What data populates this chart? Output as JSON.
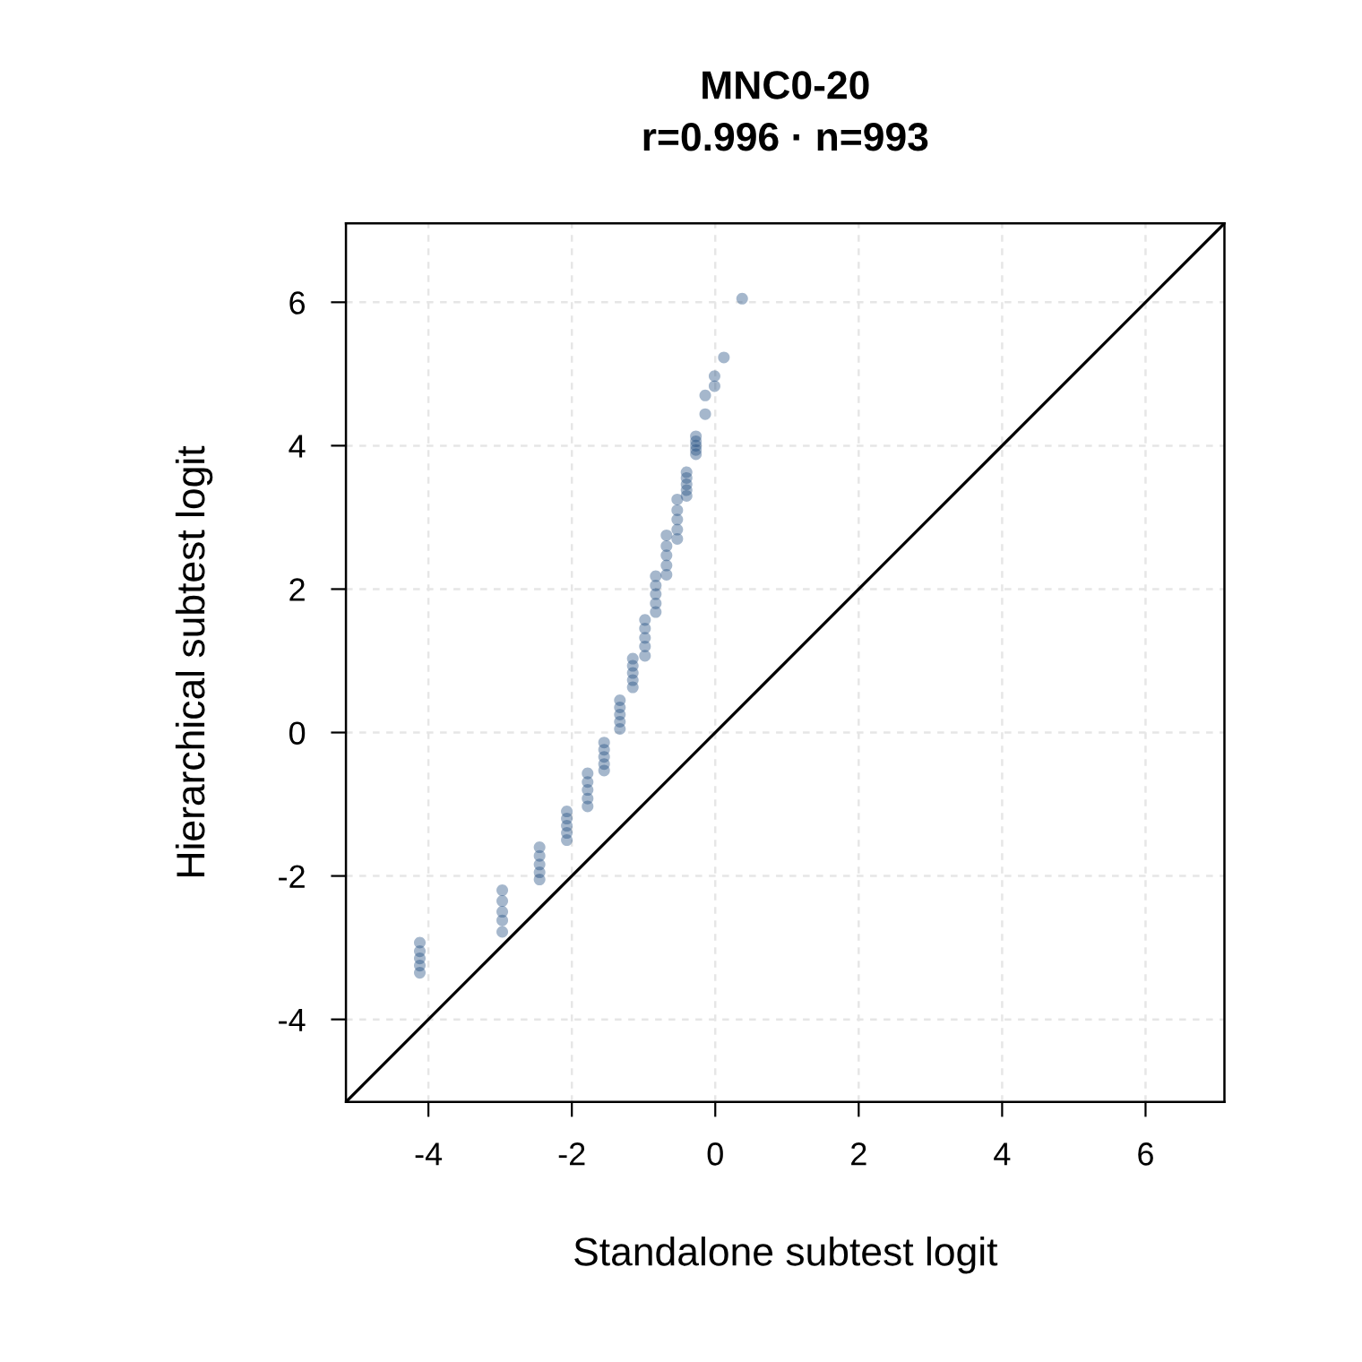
{
  "chart_data": {
    "type": "scatter",
    "title": "MNC0-20",
    "subtitle": "r=0.996 · n=993",
    "xlabel": "Standalone subtest logit",
    "ylabel": "Hierarchical subtest logit",
    "xlim": [
      -5.15,
      7.1
    ],
    "ylim": [
      -5.15,
      7.1
    ],
    "xticks": [
      -4,
      -2,
      0,
      2,
      4,
      6
    ],
    "yticks": [
      -4,
      -2,
      0,
      2,
      4,
      6
    ],
    "grid": true,
    "series": [
      {
        "marker": "circle",
        "color": "#1f4a80",
        "x": [
          -4.12,
          -4.12,
          -4.12,
          -4.12,
          -4.12,
          -2.97,
          -2.97,
          -2.97,
          -2.97,
          -2.97,
          -2.45,
          -2.45,
          -2.45,
          -2.45,
          -2.45,
          -2.07,
          -2.07,
          -2.07,
          -2.07,
          -2.07,
          -1.78,
          -1.78,
          -1.78,
          -1.78,
          -1.78,
          -1.55,
          -1.55,
          -1.55,
          -1.55,
          -1.55,
          -1.33,
          -1.33,
          -1.33,
          -1.33,
          -1.33,
          -1.15,
          -1.15,
          -1.15,
          -1.15,
          -1.15,
          -0.98,
          -0.98,
          -0.98,
          -0.98,
          -0.98,
          -0.83,
          -0.83,
          -0.83,
          -0.83,
          -0.83,
          -0.68,
          -0.68,
          -0.68,
          -0.68,
          -0.68,
          -0.53,
          -0.53,
          -0.53,
          -0.53,
          -0.53,
          -0.4,
          -0.4,
          -0.4,
          -0.4,
          -0.4,
          -0.27,
          -0.27,
          -0.27,
          -0.27,
          -0.27,
          -0.14,
          -0.14,
          -0.01,
          -0.01,
          0.12,
          0.375
        ],
        "values": [
          -2.93,
          -3.05,
          -3.15,
          -3.25,
          -3.35,
          -2.2,
          -2.35,
          -2.5,
          -2.62,
          -2.78,
          -1.6,
          -1.72,
          -1.84,
          -1.95,
          -2.05,
          -1.1,
          -1.2,
          -1.3,
          -1.4,
          -1.5,
          -0.57,
          -0.69,
          -0.8,
          -0.92,
          -1.03,
          -0.14,
          -0.24,
          -0.34,
          -0.44,
          -0.53,
          0.45,
          0.35,
          0.25,
          0.15,
          0.05,
          1.03,
          0.93,
          0.83,
          0.73,
          0.63,
          1.57,
          1.45,
          1.32,
          1.2,
          1.07,
          2.18,
          2.05,
          1.93,
          1.8,
          1.68,
          2.75,
          2.6,
          2.47,
          2.33,
          2.2,
          3.25,
          3.1,
          2.97,
          2.83,
          2.7,
          3.63,
          3.55,
          3.46,
          3.38,
          3.3,
          4.13,
          4.06,
          4.0,
          3.94,
          3.88,
          4.44,
          4.7,
          4.83,
          4.97,
          5.23,
          6.05
        ]
      },
      {
        "type": "line",
        "color": "#000000",
        "x": [
          -5.15,
          7.1
        ],
        "values": [
          -5.15,
          7.1
        ]
      }
    ]
  }
}
